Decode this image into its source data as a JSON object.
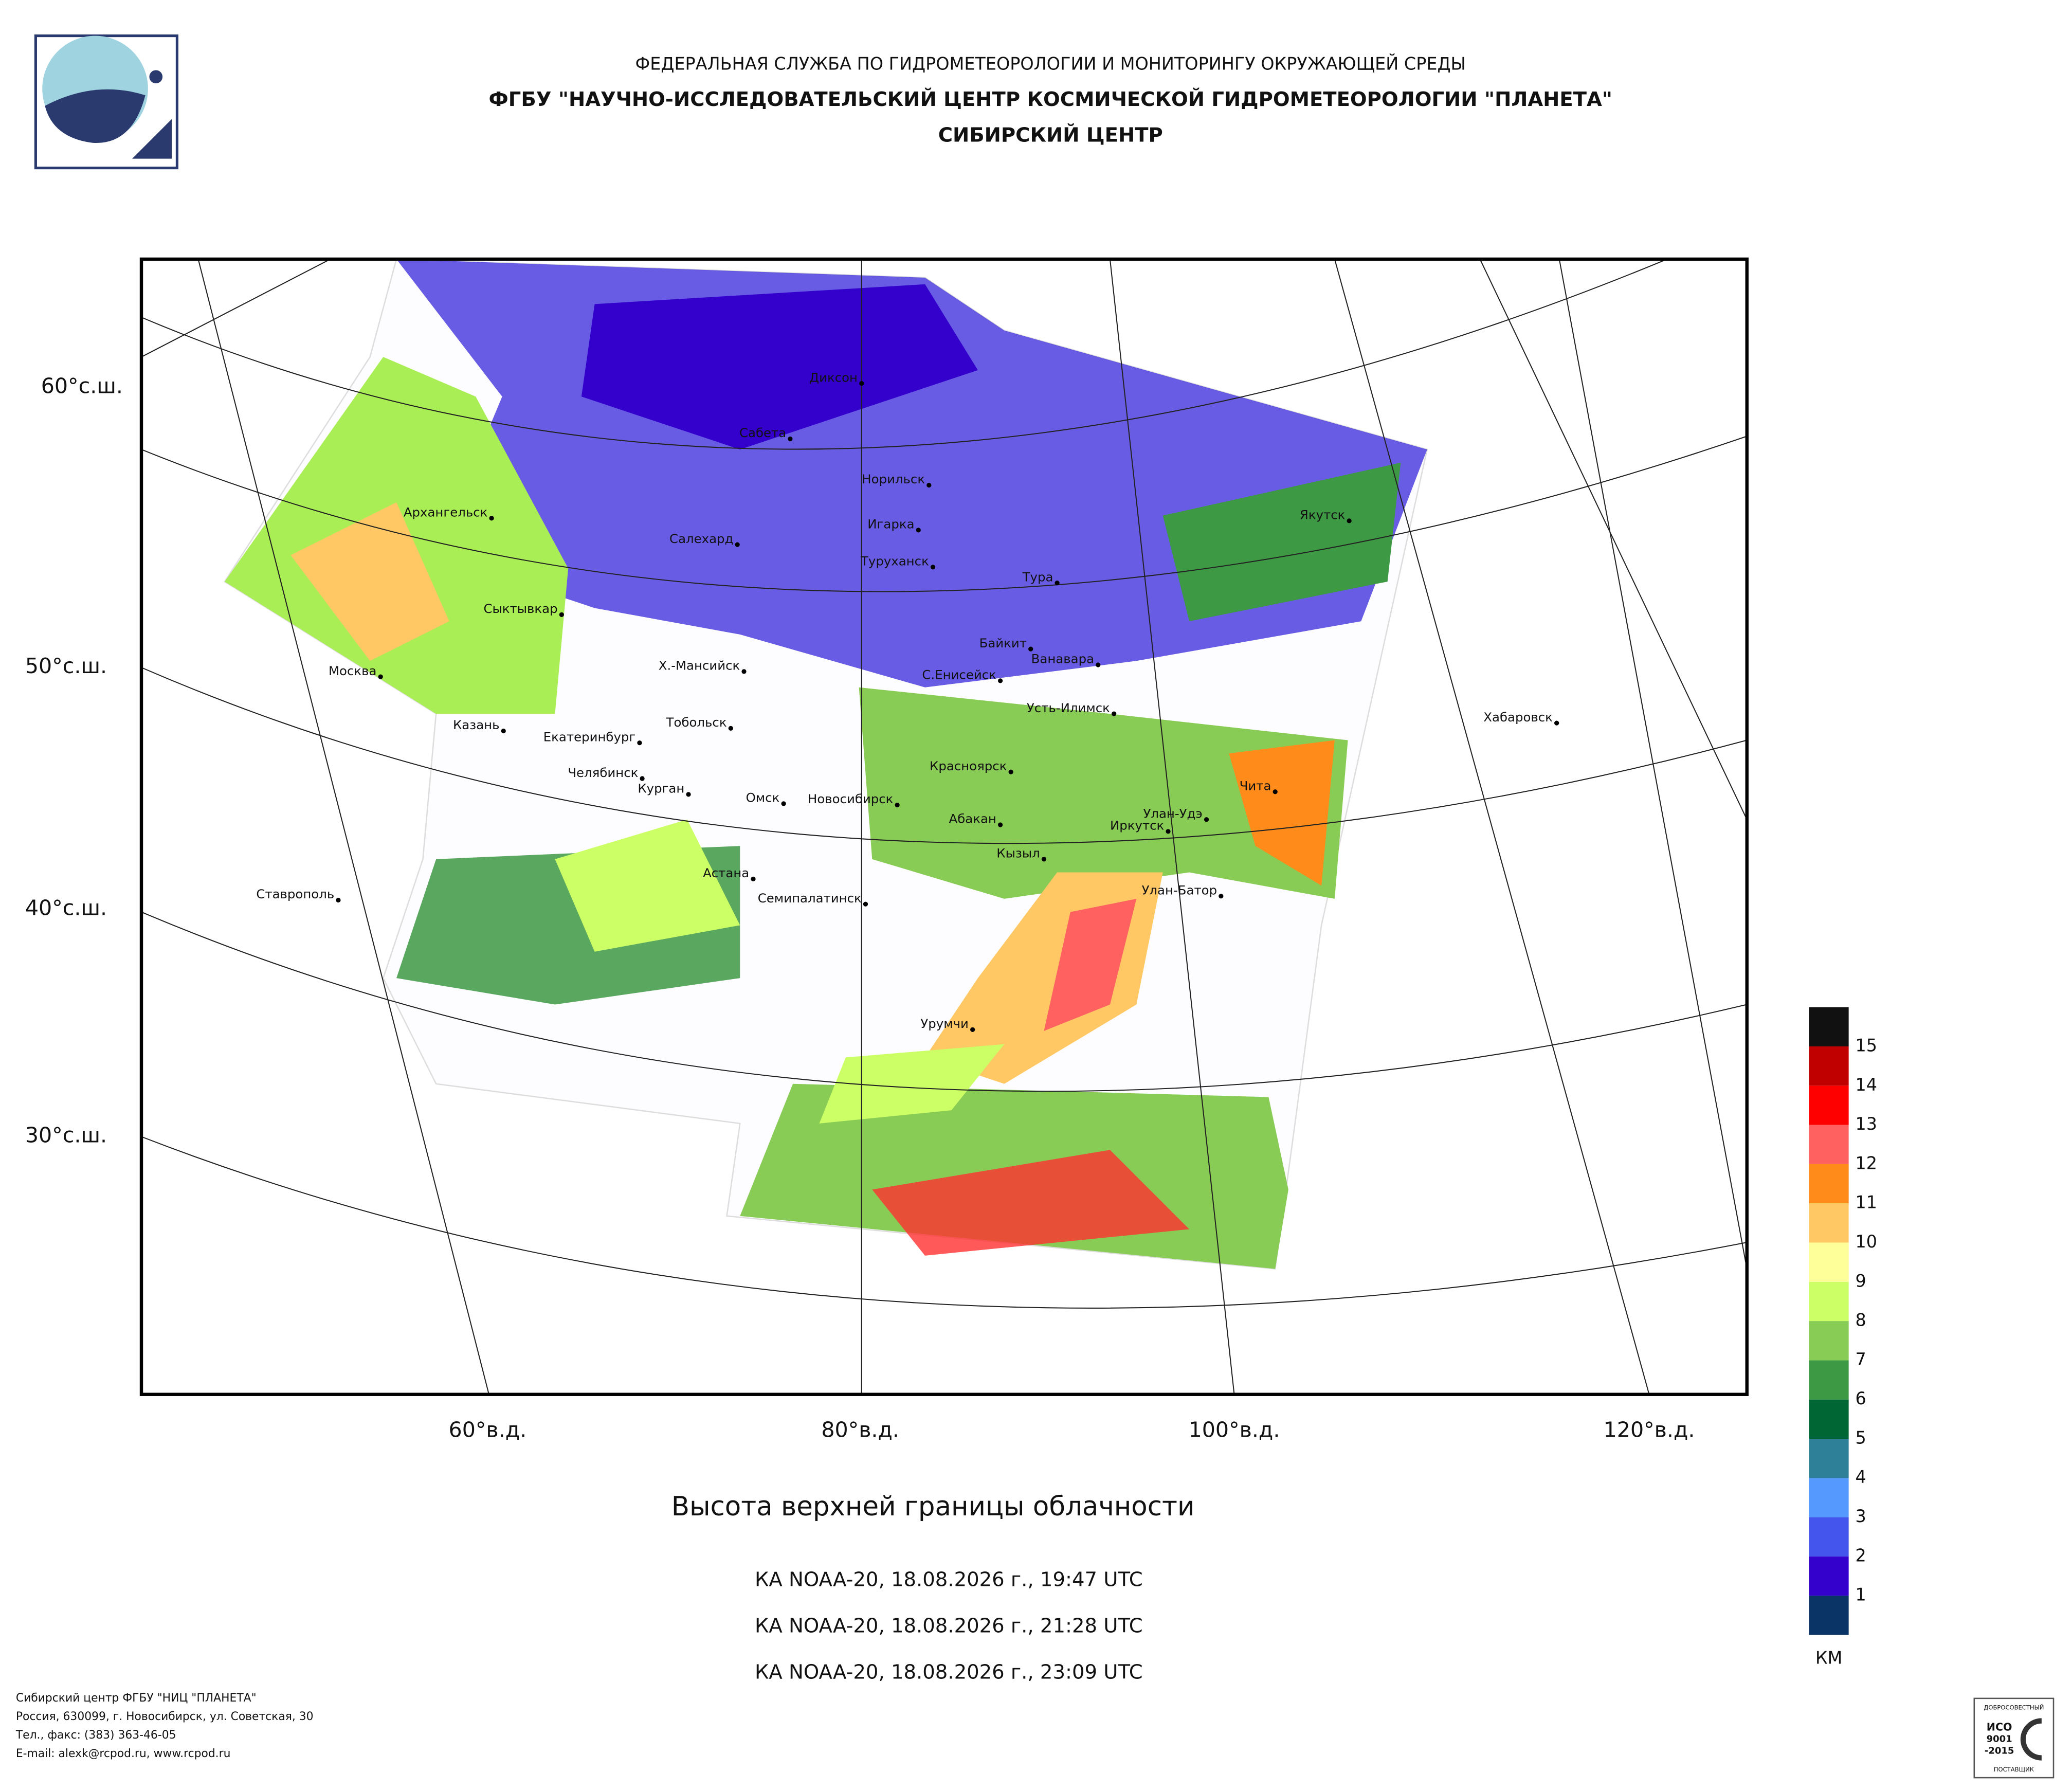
{
  "header": {
    "agency": "ФЕДЕРАЛЬНАЯ СЛУЖБА ПО ГИДРОМЕТЕОРОЛОГИИ И МОНИТОРИНГУ ОКРУЖАЮЩЕЙ СРЕДЫ",
    "institute": "ФГБУ \"НАУЧНО-ИССЛЕДОВАТЕЛЬСКИЙ ЦЕНТР КОСМИЧЕСКОЙ ГИДРОМЕТЕОРОЛОГИИ \"ПЛАНЕТА\"",
    "center": "СИБИРСКИЙ ЦЕНТР"
  },
  "map": {
    "lat_labels": [
      "60°с.ш.",
      "50°с.ш.",
      "40°с.ш.",
      "30°с.ш."
    ],
    "lon_labels": [
      "60°в.д.",
      "80°в.д.",
      "100°в.д.",
      "120°в.д."
    ],
    "cities": [
      "Диксон",
      "Сабета",
      "Норильск",
      "Игарка",
      "Туруханск",
      "Салехард",
      "Архангельск",
      "Тура",
      "Якутск",
      "Сыктывкар",
      "Байкит",
      "Ванавара",
      "Москва",
      "Х.-Мансийск",
      "С.Енисейск",
      "Усть-Илимск",
      "Хабаровск",
      "Казань",
      "Тобольск",
      "Екатеринбург",
      "Красноярск",
      "Чита",
      "Челябинск",
      "Курган",
      "Омск",
      "Улан-Удэ",
      "Новосибирск",
      "Абакан",
      "Иркутск",
      "Кызыл",
      "Астана",
      "Ставрополь",
      "Улан-Батор",
      "Семипалатинск",
      "Урумчи"
    ]
  },
  "legend": {
    "levels": [
      1,
      2,
      3,
      4,
      5,
      6,
      7,
      8,
      9,
      10,
      11,
      12,
      13,
      14,
      15
    ],
    "colors": [
      "#0b3466",
      "#3300cc",
      "#4455ee",
      "#5599ff",
      "#2e8099",
      "#006633",
      "#3d9944",
      "#88cc55",
      "#ccff66",
      "#ffff99",
      "#ffc864",
      "#ff8c1a",
      "#ff6060",
      "#ff0000",
      "#c00000",
      "#111111"
    ],
    "unit": "КМ"
  },
  "caption": {
    "title": "Высота верхней границы облачности",
    "passes": [
      "КА NOAA-20, 18.08.2026 г., 19:47 UTC",
      "КА NOAA-20, 18.08.2026 г., 21:28 UTC",
      "КА NOAA-20, 18.08.2026 г., 23:09 UTC"
    ]
  },
  "footer": {
    "lines": [
      "Сибирский центр ФГБУ \"НИЦ \"ПЛАНЕТА\"",
      "Россия, 630099, г. Новосибирск, ул. Советская, 30",
      "Тел., факс: (383) 363-46-05",
      "E-mail: alexk@rcpod.ru, www.rcpod.ru"
    ]
  },
  "badge": {
    "top": "ДОБРОСОВЕСТНЫЙ",
    "iso": "ИСО",
    "number": "9001",
    "year": "-2015",
    "bottom": "ПОСТАВЩИК"
  }
}
